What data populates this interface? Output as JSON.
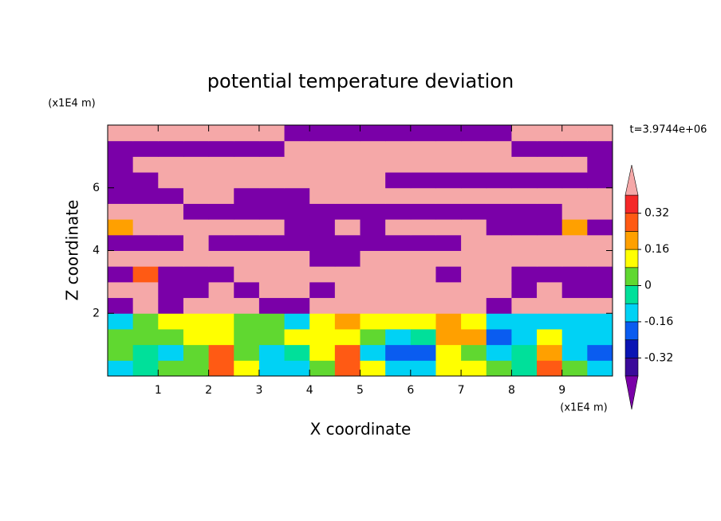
{
  "chart_data": {
    "type": "contour",
    "title": "potential temperature deviation",
    "xlabel": "X coordinate",
    "ylabel": "Z coordinate",
    "xunit": "(x1E4 m)",
    "yunit": "(x1E4 m)",
    "annotation": "t=3.9744e+06",
    "xlim": [
      0,
      10
    ],
    "ylim": [
      0,
      8
    ],
    "xticks": [
      1,
      2,
      3,
      4,
      5,
      6,
      7,
      8,
      9
    ],
    "yticks": [
      2,
      4,
      6
    ],
    "x": [
      0.25,
      0.75,
      1.25,
      1.75,
      2.25,
      2.75,
      3.25,
      3.75,
      4.25,
      4.75,
      5.25,
      5.75,
      6.25,
      6.75,
      7.25,
      7.75,
      8.25,
      8.75,
      9.25,
      9.75
    ],
    "y": [
      0.25,
      0.75,
      1.25,
      1.75,
      2.25,
      2.75,
      3.25,
      3.75,
      4.25,
      4.75,
      5.25,
      5.75,
      6.25,
      6.75,
      7.25,
      7.75
    ],
    "z": [
      [
        -0.1,
        -0.05,
        0.02,
        0.05,
        0.25,
        0.1,
        -0.1,
        -0.15,
        0.05,
        0.3,
        0.1,
        -0.1,
        -0.12,
        0.1,
        0.15,
        0.05,
        -0.05,
        0.3,
        0.05,
        -0.1
      ],
      [
        0.02,
        -0.05,
        -0.1,
        0.05,
        0.3,
        0.05,
        -0.12,
        -0.05,
        0.1,
        0.25,
        -0.1,
        -0.2,
        -0.2,
        0.1,
        0.05,
        -0.15,
        -0.05,
        0.2,
        -0.1,
        -0.2
      ],
      [
        0.05,
        0.02,
        0.05,
        0.1,
        0.15,
        0.05,
        0.02,
        0.1,
        0.12,
        0.15,
        0,
        -0.1,
        -0.05,
        0.2,
        0.2,
        -0.2,
        -0.1,
        0.1,
        -0.1,
        -0.12
      ],
      [
        -0.1,
        0.02,
        0.1,
        0.12,
        0.1,
        0.05,
        0.05,
        -0.1,
        0.1,
        0.2,
        0.15,
        0.1,
        0.1,
        0.2,
        0.1,
        -0.1,
        -0.1,
        -0.12,
        -0.1,
        -0.12
      ],
      [
        -0.5,
        0.5,
        -0.5,
        0.5,
        0.5,
        0.5,
        -0.5,
        -0.5,
        0.5,
        0.5,
        0.5,
        0.5,
        0.5,
        0.5,
        0.5,
        -0.5,
        0.5,
        0.5,
        0.5,
        0.5
      ],
      [
        0.5,
        0.5,
        -0.5,
        -0.5,
        0.5,
        -0.5,
        0.5,
        0.5,
        -0.5,
        0.5,
        0.5,
        0.5,
        0.5,
        0.5,
        0.5,
        0.5,
        -0.5,
        0.5,
        -0.5,
        -0.5
      ],
      [
        -0.5,
        0.3,
        -0.5,
        -0.5,
        -0.5,
        0.5,
        0.5,
        0.5,
        0.5,
        0.5,
        0.5,
        0.5,
        0.5,
        -0.5,
        0.5,
        0.5,
        -0.5,
        -0.5,
        -0.5,
        -0.5
      ],
      [
        0.5,
        0.5,
        0.5,
        0.5,
        0.5,
        0.5,
        0.5,
        0.5,
        -0.5,
        -0.5,
        0.5,
        0.5,
        0.5,
        0.5,
        0.5,
        0.5,
        0.5,
        0.5,
        0.5,
        0.5
      ],
      [
        -0.5,
        -0.5,
        -0.5,
        0.5,
        -0.5,
        -0.5,
        -0.5,
        -0.5,
        -0.5,
        -0.5,
        -0.5,
        -0.5,
        -0.5,
        -0.5,
        0.5,
        0.5,
        0.5,
        0.5,
        0.5,
        0.5
      ],
      [
        0.2,
        0.5,
        0.5,
        0.5,
        0.5,
        0.5,
        0.5,
        -0.5,
        -0.5,
        0.5,
        -0.5,
        0.5,
        0.5,
        0.5,
        0.5,
        -0.5,
        -0.5,
        -0.5,
        0.2,
        -0.5
      ],
      [
        0.5,
        0.5,
        0.5,
        -0.5,
        -0.5,
        -0.5,
        -0.5,
        -0.5,
        -0.5,
        -0.5,
        -0.5,
        -0.5,
        -0.5,
        -0.5,
        -0.5,
        -0.5,
        -0.5,
        -0.5,
        0.5,
        0.5
      ],
      [
        -0.5,
        -0.5,
        -0.5,
        0.5,
        0.5,
        -0.5,
        -0.5,
        -0.5,
        0.5,
        0.5,
        0.5,
        0.5,
        0.5,
        0.5,
        0.5,
        0.5,
        0.5,
        0.5,
        0.5,
        0.5
      ],
      [
        -0.5,
        -0.5,
        0.5,
        0.5,
        0.5,
        0.5,
        0.5,
        0.5,
        0.5,
        0.5,
        0.5,
        -0.5,
        -0.5,
        -0.5,
        -0.5,
        -0.5,
        -0.5,
        -0.5,
        -0.5,
        -0.5
      ],
      [
        -0.5,
        0.5,
        0.5,
        0.5,
        0.5,
        0.5,
        0.5,
        0.5,
        0.5,
        0.5,
        0.5,
        0.5,
        0.5,
        0.5,
        0.5,
        0.5,
        0.5,
        0.5,
        0.5,
        -0.5
      ],
      [
        -0.5,
        -0.5,
        -0.5,
        -0.5,
        -0.5,
        -0.5,
        -0.5,
        0.5,
        0.5,
        0.5,
        0.5,
        0.5,
        0.5,
        0.5,
        0.5,
        0.5,
        -0.5,
        -0.5,
        -0.5,
        -0.5
      ],
      [
        0.5,
        0.5,
        0.5,
        0.5,
        0.5,
        0.5,
        0.5,
        -0.5,
        -0.5,
        -0.5,
        -0.5,
        -0.5,
        -0.5,
        -0.5,
        -0.5,
        -0.5,
        0.5,
        0.5,
        0.5,
        0.5
      ]
    ],
    "colorbar": {
      "levels": [
        -0.4,
        -0.32,
        -0.24,
        -0.16,
        -0.08,
        0,
        0.08,
        0.16,
        0.24,
        0.32,
        0.4
      ],
      "colors": [
        "#7a00a8",
        "#3a0a9a",
        "#0a14b4",
        "#0a5cf0",
        "#00d2f5",
        "#00e09a",
        "#60d830",
        "#ffff00",
        "#ffa000",
        "#ff5a14",
        "#f52828",
        "#f5a8a8"
      ],
      "ticks": [
        -0.32,
        -0.16,
        0,
        0.16,
        0.32
      ]
    }
  }
}
